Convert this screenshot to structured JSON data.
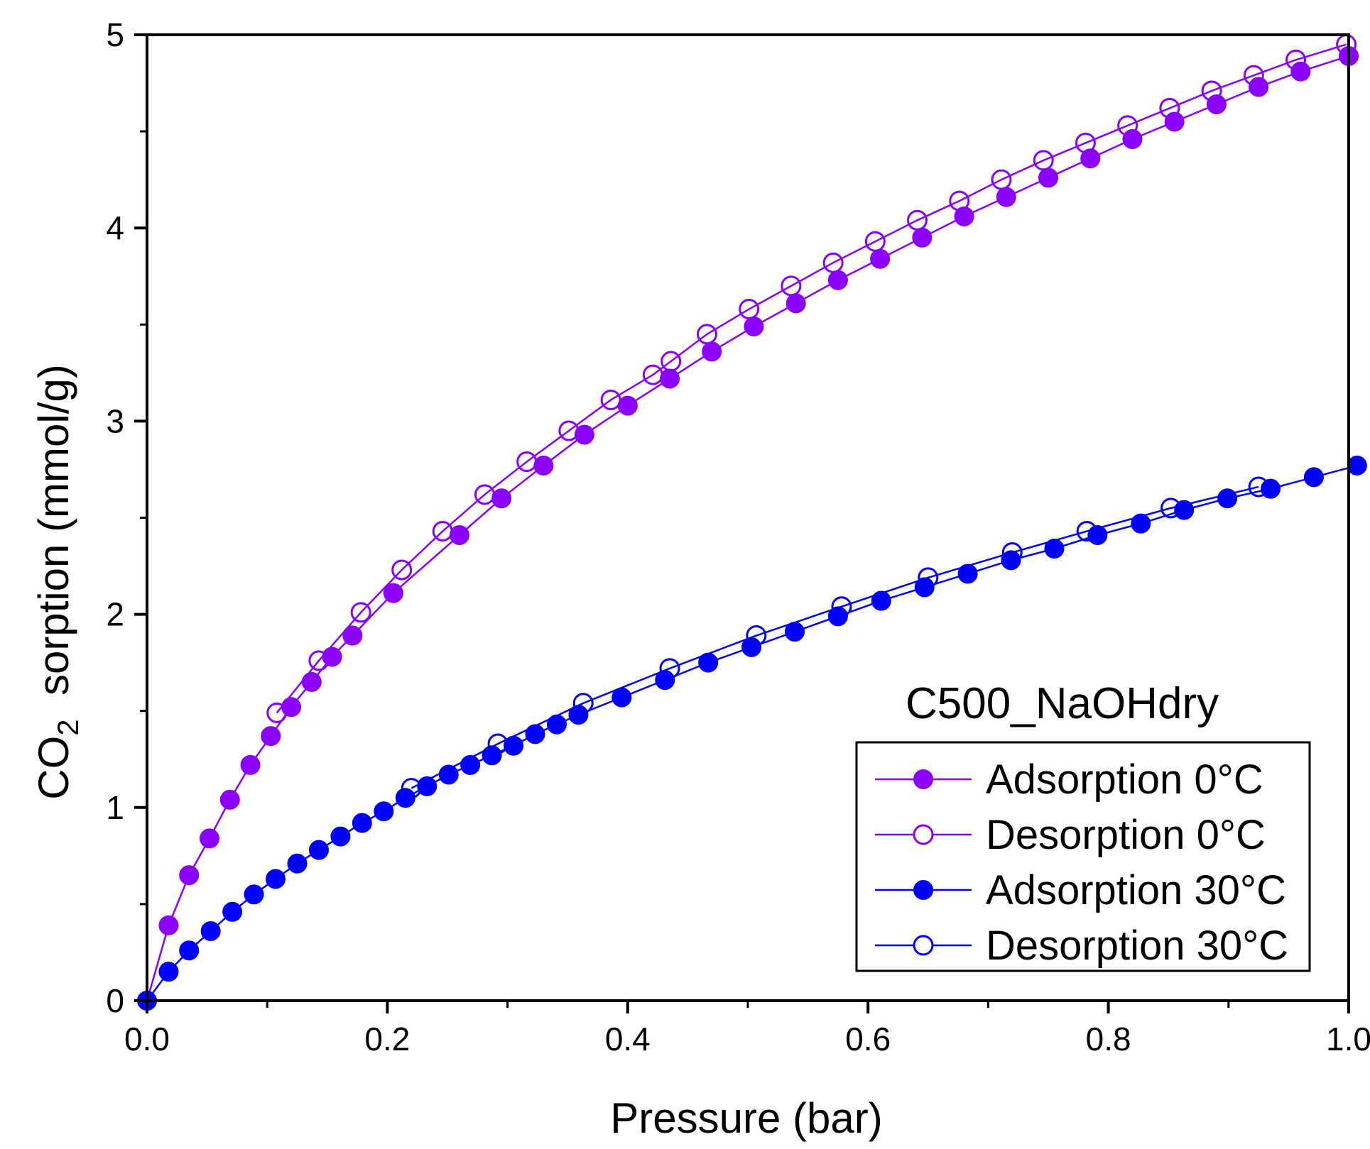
{
  "chart_data": {
    "type": "scatter",
    "title": "",
    "annotation": "C500_NaOHdry",
    "xlabel": "Pressure (bar)",
    "ylabel": {
      "prefix": "CO",
      "subscript": "2",
      "suffix": "  sorption (mmol/g)"
    },
    "xlim": [
      0,
      1.0
    ],
    "ylim": [
      0,
      5
    ],
    "xticks": [
      0.0,
      0.2,
      0.4,
      0.6,
      0.8,
      1.0
    ],
    "xtick_labels": [
      "0.0",
      "0.2",
      "0.4",
      "0.6",
      "0.8",
      "1.0"
    ],
    "yticks": [
      0,
      1,
      2,
      3,
      4,
      5
    ],
    "ytick_labels": [
      "0",
      "1",
      "2",
      "3",
      "4",
      "5"
    ],
    "grid": false,
    "legend_position": "bottom-right",
    "series": [
      {
        "name": "Adsorption 0°C",
        "color": "#8B00FF",
        "marker": "filled-circle",
        "x": [
          0.0,
          0.018,
          0.035,
          0.052,
          0.069,
          0.086,
          0.103,
          0.12,
          0.137,
          0.154,
          0.171,
          0.205,
          0.26,
          0.295,
          0.33,
          0.364,
          0.4,
          0.435,
          0.47,
          0.505,
          0.54,
          0.575,
          0.61,
          0.645,
          0.68,
          0.715,
          0.75,
          0.785,
          0.82,
          0.855,
          0.89,
          0.925,
          0.96,
          1.0
        ],
        "y": [
          0.0,
          0.39,
          0.65,
          0.84,
          1.04,
          1.22,
          1.37,
          1.52,
          1.65,
          1.78,
          1.89,
          2.11,
          2.41,
          2.6,
          2.77,
          2.93,
          3.08,
          3.22,
          3.36,
          3.49,
          3.61,
          3.73,
          3.84,
          3.95,
          4.06,
          4.16,
          4.26,
          4.36,
          4.46,
          4.55,
          4.64,
          4.73,
          4.81,
          4.89
        ]
      },
      {
        "name": "Desorption 0°C",
        "color": "#8B00FF",
        "marker": "open-circle",
        "x": [
          0.998,
          0.956,
          0.921,
          0.886,
          0.851,
          0.816,
          0.781,
          0.746,
          0.711,
          0.676,
          0.641,
          0.606,
          0.571,
          0.536,
          0.501,
          0.466,
          0.436,
          0.421,
          0.386,
          0.351,
          0.316,
          0.281,
          0.246,
          0.212,
          0.178,
          0.143,
          0.108
        ],
        "y": [
          4.95,
          4.87,
          4.79,
          4.71,
          4.62,
          4.53,
          4.44,
          4.35,
          4.25,
          4.14,
          4.04,
          3.93,
          3.82,
          3.7,
          3.58,
          3.45,
          3.31,
          3.24,
          3.11,
          2.95,
          2.79,
          2.62,
          2.43,
          2.23,
          2.01,
          1.76,
          1.49
        ]
      },
      {
        "name": "Adsorption 30°C",
        "color": "#0000FF",
        "marker": "filled-circle",
        "x": [
          0.0,
          0.018,
          0.035,
          0.053,
          0.071,
          0.089,
          0.107,
          0.125,
          0.143,
          0.161,
          0.179,
          0.197,
          0.215,
          0.233,
          0.251,
          0.269,
          0.287,
          0.305,
          0.323,
          0.341,
          0.359,
          0.395,
          0.431,
          0.467,
          0.503,
          0.539,
          0.575,
          0.611,
          0.647,
          0.683,
          0.719,
          0.755,
          0.791,
          0.827,
          0.863,
          0.899,
          0.935,
          0.971,
          1.007
        ],
        "y": [
          0.0,
          0.15,
          0.26,
          0.36,
          0.46,
          0.55,
          0.63,
          0.71,
          0.78,
          0.85,
          0.92,
          0.98,
          1.05,
          1.11,
          1.17,
          1.22,
          1.27,
          1.32,
          1.38,
          1.43,
          1.48,
          1.57,
          1.66,
          1.75,
          1.83,
          1.91,
          1.99,
          2.07,
          2.14,
          2.21,
          2.28,
          2.34,
          2.41,
          2.47,
          2.54,
          2.6,
          2.65,
          2.71,
          2.77
        ]
      },
      {
        "name": "Desorption 30°C",
        "color": "#0000FF",
        "marker": "open-circle",
        "x": [
          0.925,
          0.852,
          0.782,
          0.72,
          0.65,
          0.578,
          0.507,
          0.435,
          0.363,
          0.292,
          0.22
        ],
        "y": [
          2.66,
          2.55,
          2.43,
          2.32,
          2.19,
          2.04,
          1.89,
          1.72,
          1.54,
          1.33,
          1.1
        ]
      }
    ]
  }
}
